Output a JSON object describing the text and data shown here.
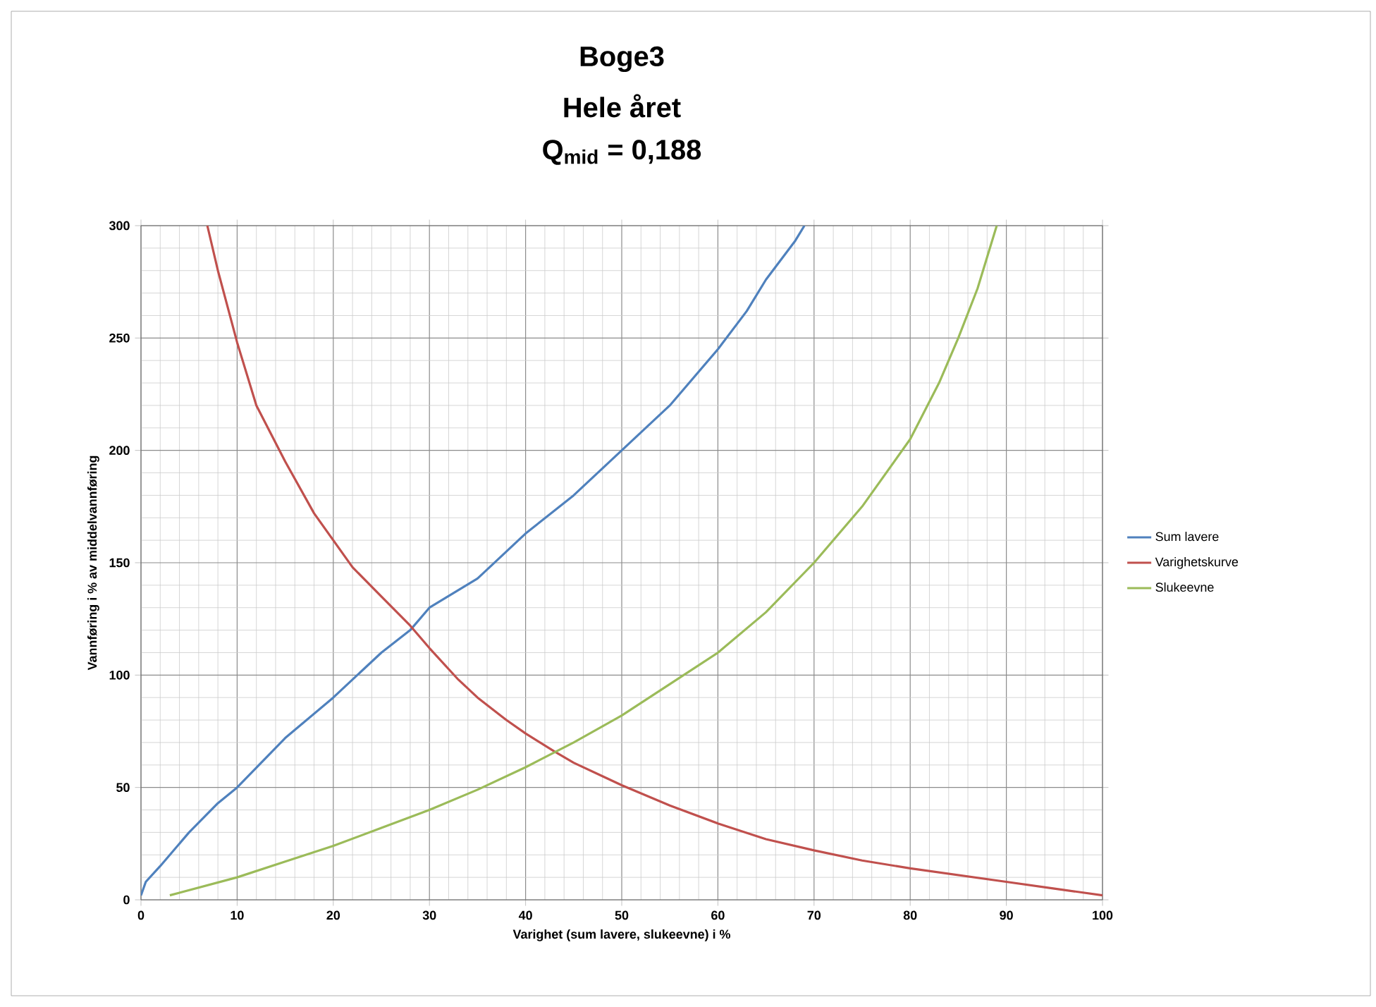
{
  "chart_data": {
    "type": "line",
    "title": "Boge3",
    "subtitle": "Hele året",
    "annotations": [
      "Q$_{mid}$ = 0,188"
    ],
    "xlabel": "Varighet (sum lavere, slukeevne) i %",
    "ylabel": "Vannføring i % av middelvannføring",
    "xlim": [
      0,
      100
    ],
    "ylim": [
      0,
      300
    ],
    "xticks": [
      0,
      10,
      20,
      30,
      40,
      50,
      60,
      70,
      80,
      90,
      100
    ],
    "yticks": [
      0,
      50,
      100,
      150,
      200,
      250,
      300
    ],
    "grid": true,
    "legend": "right",
    "marker": "none",
    "line_style": "solid",
    "series": [
      {
        "name": "Sum lavere",
        "color": "#4f81bd",
        "x": [
          0,
          0.5,
          2,
          5,
          8,
          10,
          15,
          20,
          25,
          28,
          30,
          35,
          38,
          40,
          45,
          50,
          55,
          60,
          63,
          65,
          68,
          69
        ],
        "values": [
          2,
          8,
          15,
          30,
          43,
          50,
          72,
          90,
          110,
          120,
          130,
          143,
          155,
          163,
          180,
          200,
          220,
          245,
          262,
          276,
          293,
          300
        ]
      },
      {
        "name": "Varighetskurve",
        "color": "#c0504d",
        "x": [
          6.9,
          8,
          10,
          12,
          15,
          18,
          20,
          22,
          25,
          28,
          30,
          33,
          35,
          38,
          40,
          43,
          45,
          48,
          50,
          55,
          60,
          65,
          70,
          75,
          80,
          85,
          90,
          95,
          100
        ],
        "values": [
          300,
          280,
          248,
          220,
          195,
          172,
          160,
          148,
          135,
          122,
          112,
          98,
          90,
          80,
          74,
          66,
          61,
          55,
          51,
          42,
          34,
          27,
          22,
          17.5,
          14,
          11,
          8,
          5,
          2
        ]
      },
      {
        "name": "Slukeevne",
        "color": "#9bbb59",
        "x": [
          3,
          10,
          15,
          20,
          25,
          30,
          35,
          40,
          45,
          50,
          55,
          60,
          65,
          70,
          75,
          80,
          83,
          85,
          87,
          89
        ],
        "values": [
          2,
          10,
          17,
          24,
          32,
          40,
          49,
          59,
          70,
          82,
          96,
          110,
          128,
          150,
          175,
          205,
          230,
          250,
          272,
          300
        ]
      }
    ]
  }
}
